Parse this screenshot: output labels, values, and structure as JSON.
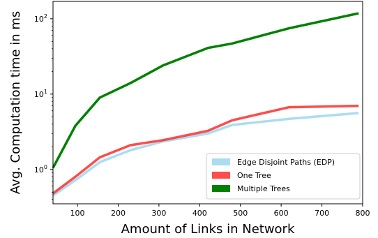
{
  "chart_data": {
    "type": "line",
    "title": "",
    "xlabel": "Amount of Links in Network",
    "ylabel": "Avg. Computation time in ms",
    "xlim": [
      40,
      800
    ],
    "ylim": [
      0.35,
      170
    ],
    "yscale": "log",
    "x_ticks": [
      100,
      200,
      300,
      400,
      500,
      600,
      700,
      800
    ],
    "y_ticks": [
      {
        "value": 1,
        "base": "10",
        "exp": "0"
      },
      {
        "value": 10,
        "base": "10",
        "exp": "1"
      },
      {
        "value": 100,
        "base": "10",
        "exp": "2"
      }
    ],
    "legend_position": "lower-right",
    "grid": false,
    "series": [
      {
        "name": "Edge Disjoint Paths (EDP)",
        "color": "#87ceeb",
        "x": [
          40,
          95,
          155,
          230,
          310,
          420,
          480,
          620,
          790
        ],
        "y": [
          0.45,
          0.72,
          1.25,
          1.8,
          2.35,
          3.0,
          3.9,
          4.7,
          5.6
        ]
      },
      {
        "name": "One Tree",
        "color": "#ff0000",
        "x": [
          40,
          95,
          155,
          230,
          310,
          420,
          480,
          620,
          790
        ],
        "y": [
          0.48,
          0.8,
          1.45,
          2.1,
          2.45,
          3.25,
          4.5,
          6.7,
          7.0
        ]
      },
      {
        "name": "Multiple Trees",
        "color": "#008000",
        "x": [
          40,
          95,
          155,
          230,
          310,
          420,
          480,
          620,
          790
        ],
        "y": [
          1.05,
          3.8,
          9.0,
          14.0,
          24.0,
          41.0,
          47.0,
          75.0,
          118.0
        ]
      }
    ]
  }
}
